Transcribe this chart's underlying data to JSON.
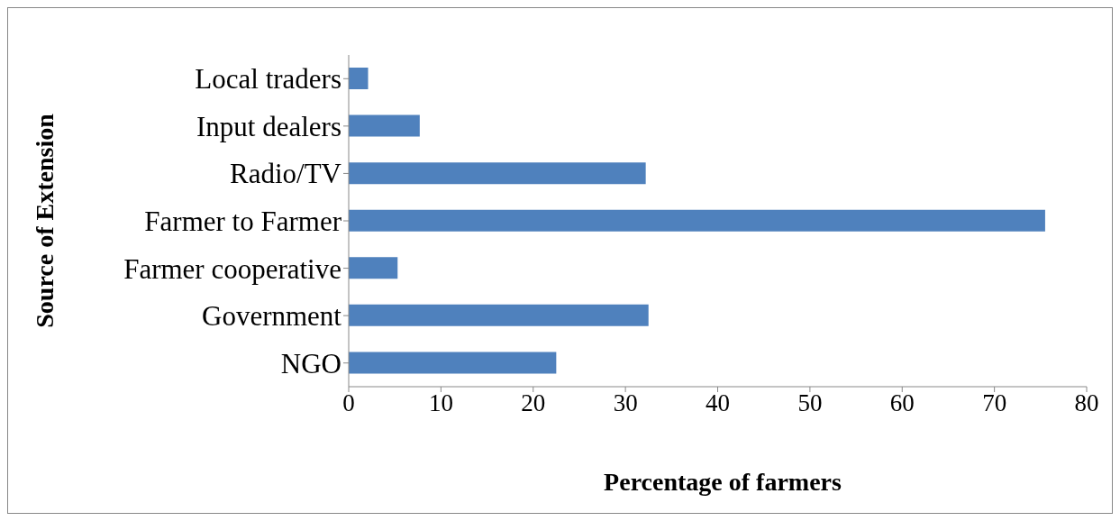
{
  "chart_data": {
    "type": "bar",
    "orientation": "horizontal",
    "xlabel": "Percentage of farmers",
    "ylabel": "Source of Extension",
    "categories": [
      "Local traders",
      "Input dealers",
      "Radio/TV",
      "Farmer to Farmer",
      "Farmer cooperative",
      "Government",
      "NGO"
    ],
    "values": [
      2.1,
      7.7,
      32.2,
      75.5,
      5.3,
      32.5,
      22.5
    ],
    "color": "#4f81bd",
    "xlim": [
      0,
      80
    ],
    "xticks": [
      0,
      10,
      20,
      30,
      40,
      50,
      60,
      70,
      80
    ],
    "grid": false,
    "legend": false
  }
}
